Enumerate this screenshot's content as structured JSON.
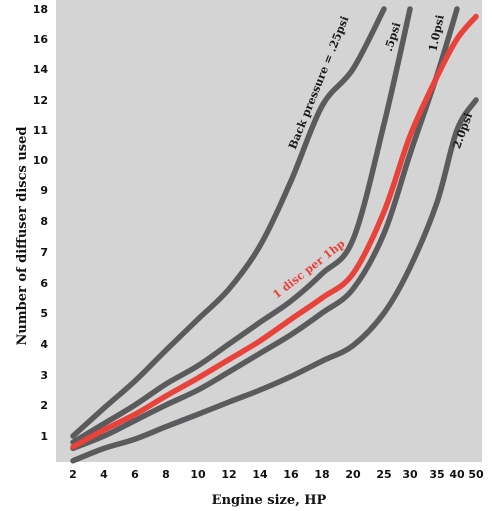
{
  "chart_data": {
    "type": "line",
    "xlabel": "Engine size, HP",
    "ylabel": "Number of diffuser discs used",
    "x_ticks": [
      "2",
      "4",
      "6",
      "8",
      "10",
      "12",
      "14",
      "16",
      "18",
      "20",
      "25",
      "30",
      "35",
      "40",
      "50"
    ],
    "y_ticks": [
      "1",
      "2",
      "3",
      "4",
      "5",
      "6",
      "7",
      "8",
      "9",
      "10",
      "11",
      "12",
      "14",
      "16",
      "18"
    ],
    "ylim": [
      0,
      18
    ],
    "grid": false,
    "background_color": "#d4d4d4",
    "series": [
      {
        "name": "Back pressure = .25psi",
        "color": "#5b5b5d",
        "x": [
          2,
          4,
          6,
          8,
          10,
          12,
          14,
          16,
          18,
          20,
          25
        ],
        "y": [
          1,
          1.9,
          2.8,
          3.8,
          4.8,
          5.8,
          7.2,
          9.3,
          11.8,
          14,
          18
        ]
      },
      {
        "name": ".5psi",
        "color": "#5b5b5d",
        "x": [
          2,
          4,
          6,
          8,
          10,
          12,
          14,
          16,
          18,
          20,
          25,
          30
        ],
        "y": [
          0.8,
          1.4,
          2,
          2.7,
          3.3,
          4,
          4.7,
          5.4,
          6.3,
          7.4,
          11.2,
          18
        ]
      },
      {
        "name": "1 disc per 1hp",
        "color": "#e8423a",
        "x": [
          2,
          4,
          6,
          8,
          10,
          12,
          14,
          16,
          18,
          20,
          25,
          30,
          35,
          40,
          50
        ],
        "y": [
          0.65,
          1.2,
          1.7,
          2.3,
          2.9,
          3.5,
          4.1,
          4.8,
          5.5,
          6.3,
          8.3,
          10.8,
          13.5,
          16,
          17.5
        ]
      },
      {
        "name": "1.0psi",
        "color": "#5b5b5d",
        "x": [
          2,
          4,
          6,
          8,
          10,
          12,
          14,
          16,
          18,
          20,
          25,
          30,
          35,
          40
        ],
        "y": [
          0.6,
          1,
          1.5,
          2,
          2.5,
          3.1,
          3.7,
          4.3,
          5,
          5.8,
          7.6,
          10.2,
          13.6,
          18
        ]
      },
      {
        "name": "2.0psi",
        "color": "#5b5b5d",
        "x": [
          2,
          4,
          6,
          8,
          10,
          12,
          14,
          16,
          18,
          20,
          25,
          30,
          35,
          40,
          50
        ],
        "y": [
          0.2,
          0.6,
          0.9,
          1.3,
          1.7,
          2.1,
          2.5,
          2.95,
          3.45,
          3.95,
          5,
          6.5,
          8.6,
          11,
          12
        ]
      }
    ],
    "annotations": [
      {
        "text": "Back pressure = .25psi",
        "series": 0
      },
      {
        "text": ".5psi",
        "series": 1
      },
      {
        "text": "1 disc per 1hp",
        "series": 2
      },
      {
        "text": "1.0psi",
        "series": 3
      },
      {
        "text": "2.0psi",
        "series": 4
      }
    ]
  }
}
